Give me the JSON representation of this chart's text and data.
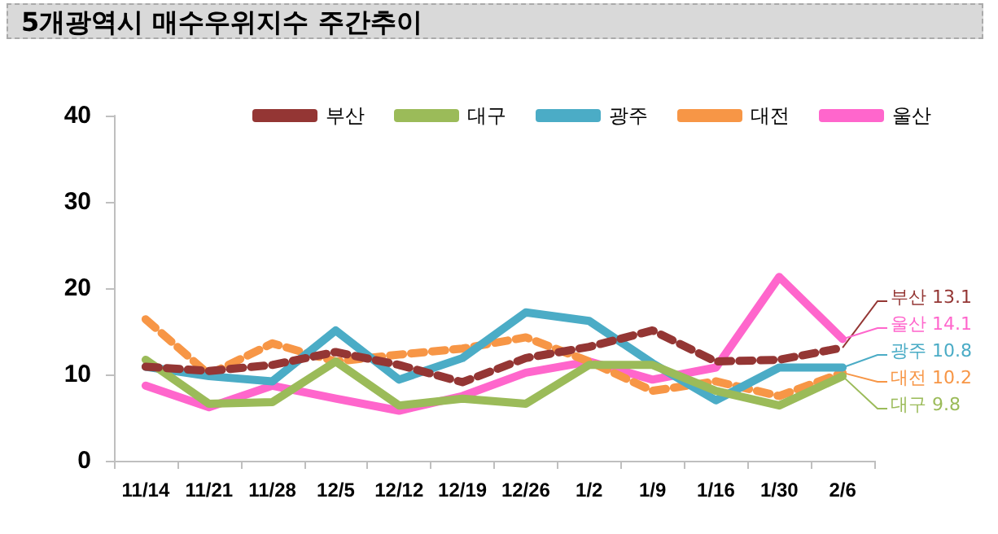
{
  "chart_data": {
    "type": "line",
    "title": "5개광역시 매수우위지수 주간추이",
    "categories": [
      "11/14",
      "11/21",
      "11/28",
      "12/5",
      "12/12",
      "12/19",
      "12/26",
      "1/2",
      "1/9",
      "1/16",
      "1/30",
      "2/6"
    ],
    "series": [
      {
        "name": "부산",
        "color": "#943634",
        "line_style": "dashed",
        "values": [
          10.9,
          10.4,
          11.1,
          12.6,
          11.1,
          9.1,
          11.9,
          13.2,
          15.1,
          11.5,
          11.7,
          13.1
        ]
      },
      {
        "name": "대구",
        "color": "#9bbb59",
        "values": [
          11.7,
          6.6,
          6.8,
          11.5,
          6.4,
          7.2,
          6.6,
          11.1,
          11.1,
          8.1,
          6.4,
          9.8
        ]
      },
      {
        "name": "광주",
        "color": "#4bacc6",
        "values": [
          10.9,
          9.8,
          9.2,
          15.1,
          9.4,
          11.9,
          17.2,
          16.2,
          11.3,
          7.0,
          10.8,
          10.8
        ]
      },
      {
        "name": "대전",
        "color": "#f79646",
        "line_style": "dashed",
        "values": [
          16.4,
          10.0,
          13.6,
          11.5,
          12.3,
          13.0,
          14.3,
          11.5,
          8.1,
          9.2,
          7.5,
          10.2
        ]
      },
      {
        "name": "울산",
        "color": "#ff66cc",
        "values": [
          8.7,
          6.2,
          8.7,
          7.2,
          5.8,
          7.5,
          10.2,
          11.5,
          9.4,
          10.8,
          21.3,
          14.1
        ]
      }
    ],
    "annotations": [
      {
        "text": "부산 13.1",
        "x": "2/6",
        "y": 13.1
      },
      {
        "text": "울산 14.1",
        "x": "2/6",
        "y": 14.1
      },
      {
        "text": "광주 10.8",
        "x": "2/6",
        "y": 10.8
      },
      {
        "text": "대전 10.2",
        "x": "2/6",
        "y": 10.2
      },
      {
        "text": "대구 9.8",
        "x": "2/6",
        "y": 9.8
      }
    ],
    "ylim": [
      0,
      40
    ],
    "yticks": [
      0,
      10,
      20,
      30,
      40
    ],
    "grid": false,
    "legend": "top",
    "marker": "none",
    "line_style": "solid"
  }
}
